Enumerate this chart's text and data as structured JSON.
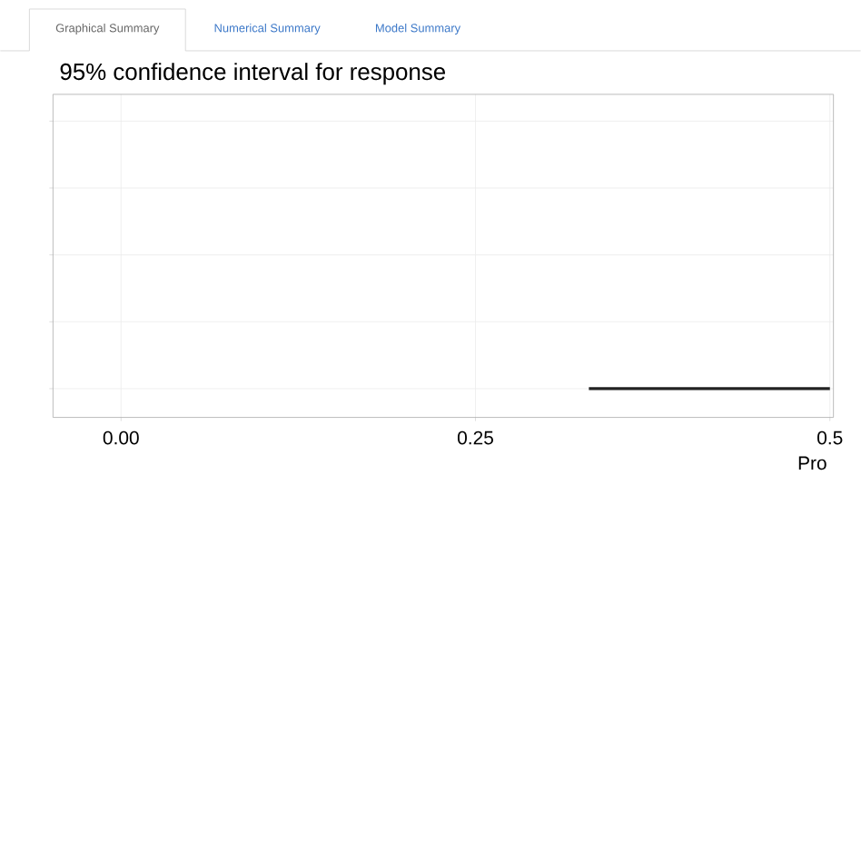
{
  "chart_data": {
    "type": "bar",
    "orientation": "horizontal",
    "title": "95% confidence interval for response",
    "xlabel": "Pro",
    "categories": [
      null,
      null,
      null,
      null,
      null
    ],
    "base": [
      null,
      null,
      null,
      null,
      0.33
    ],
    "values": [
      null,
      null,
      null,
      null,
      0.17
    ],
    "color": "#222222",
    "xlim": [
      -0.048,
      0.5025
    ],
    "xticks": [
      {
        "value": 0,
        "label": "0.00"
      },
      {
        "value": 0.25,
        "label": "0.25"
      },
      {
        "value": 0.5,
        "label": "0.5"
      }
    ],
    "grid": true,
    "tick_labels": "x",
    "annotations": [
      "Graphical Summary",
      "Numerical Summary",
      "Model Summary"
    ]
  }
}
